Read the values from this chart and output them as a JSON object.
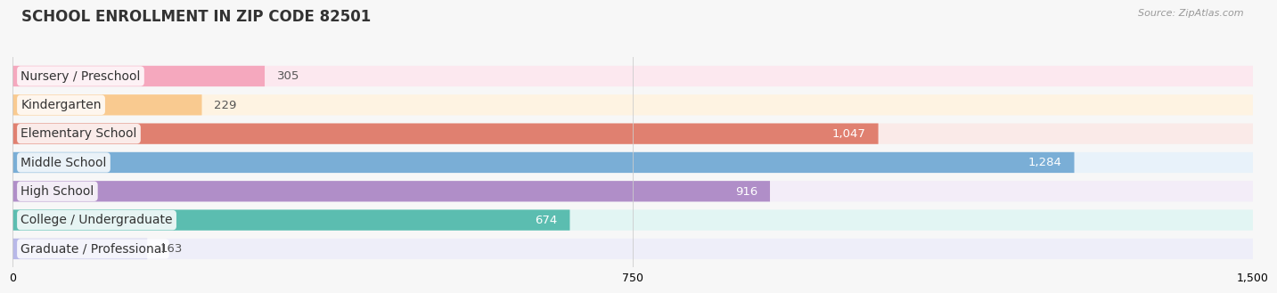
{
  "title": "SCHOOL ENROLLMENT IN ZIP CODE 82501",
  "source": "Source: ZipAtlas.com",
  "categories": [
    "Nursery / Preschool",
    "Kindergarten",
    "Elementary School",
    "Middle School",
    "High School",
    "College / Undergraduate",
    "Graduate / Professional"
  ],
  "values": [
    305,
    229,
    1047,
    1284,
    916,
    674,
    163
  ],
  "bar_colors": [
    "#f5a8be",
    "#f9ca90",
    "#e08070",
    "#7aaed6",
    "#b08ec8",
    "#5bbdb0",
    "#b8b8e8"
  ],
  "bg_colors": [
    "#fce8ef",
    "#fef3e2",
    "#faeae8",
    "#e8f2fa",
    "#f3edf8",
    "#e2f5f3",
    "#eeeef9"
  ],
  "value_inside_colors": [
    "#555555",
    "#555555",
    "#ffffff",
    "#ffffff",
    "#ffffff",
    "#555555",
    "#555555"
  ],
  "xlim": [
    0,
    1500
  ],
  "xticks": [
    0,
    750,
    1500
  ],
  "background_color": "#f7f7f7",
  "title_fontsize": 12,
  "label_fontsize": 10,
  "value_fontsize": 9.5,
  "tick_fontsize": 9
}
